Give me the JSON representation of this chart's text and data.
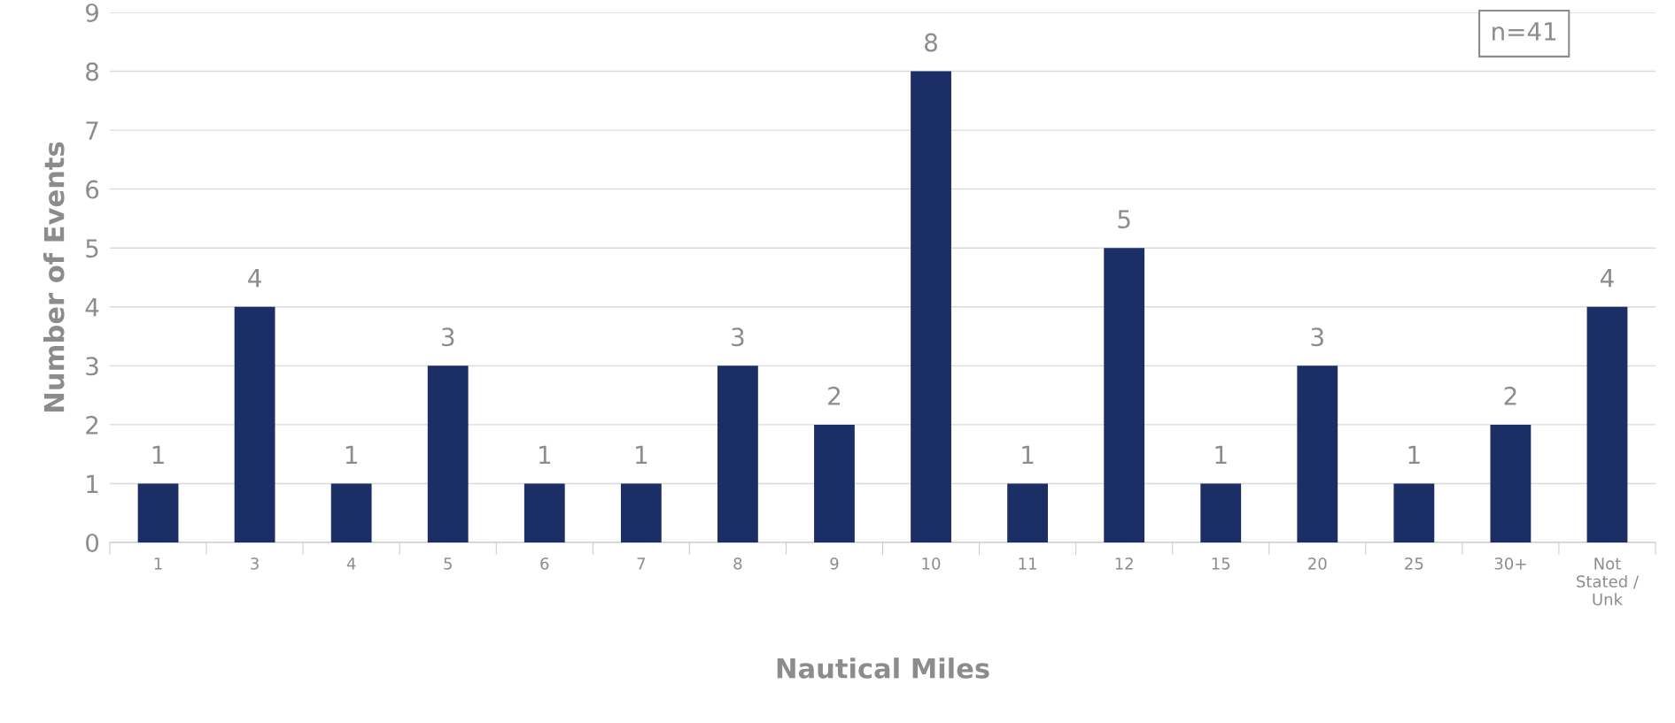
{
  "chart_data": {
    "type": "bar",
    "xlabel": "Nautical Miles",
    "ylabel": "Number of Events",
    "categories": [
      "1",
      "3",
      "4",
      "5",
      "6",
      "7",
      "8",
      "9",
      "10",
      "11",
      "12",
      "15",
      "20",
      "25",
      "30+",
      "Not\nStated /\nUnk"
    ],
    "values": [
      1,
      4,
      1,
      3,
      1,
      1,
      3,
      2,
      8,
      1,
      5,
      1,
      3,
      1,
      2,
      4
    ],
    "color": "#1c2e66",
    "ylim": [
      0,
      9
    ],
    "yticks": [
      0,
      1,
      2,
      3,
      4,
      5,
      6,
      7,
      8,
      9
    ],
    "grid": "y",
    "data_labels": true,
    "annotations": [
      "n=41"
    ]
  }
}
